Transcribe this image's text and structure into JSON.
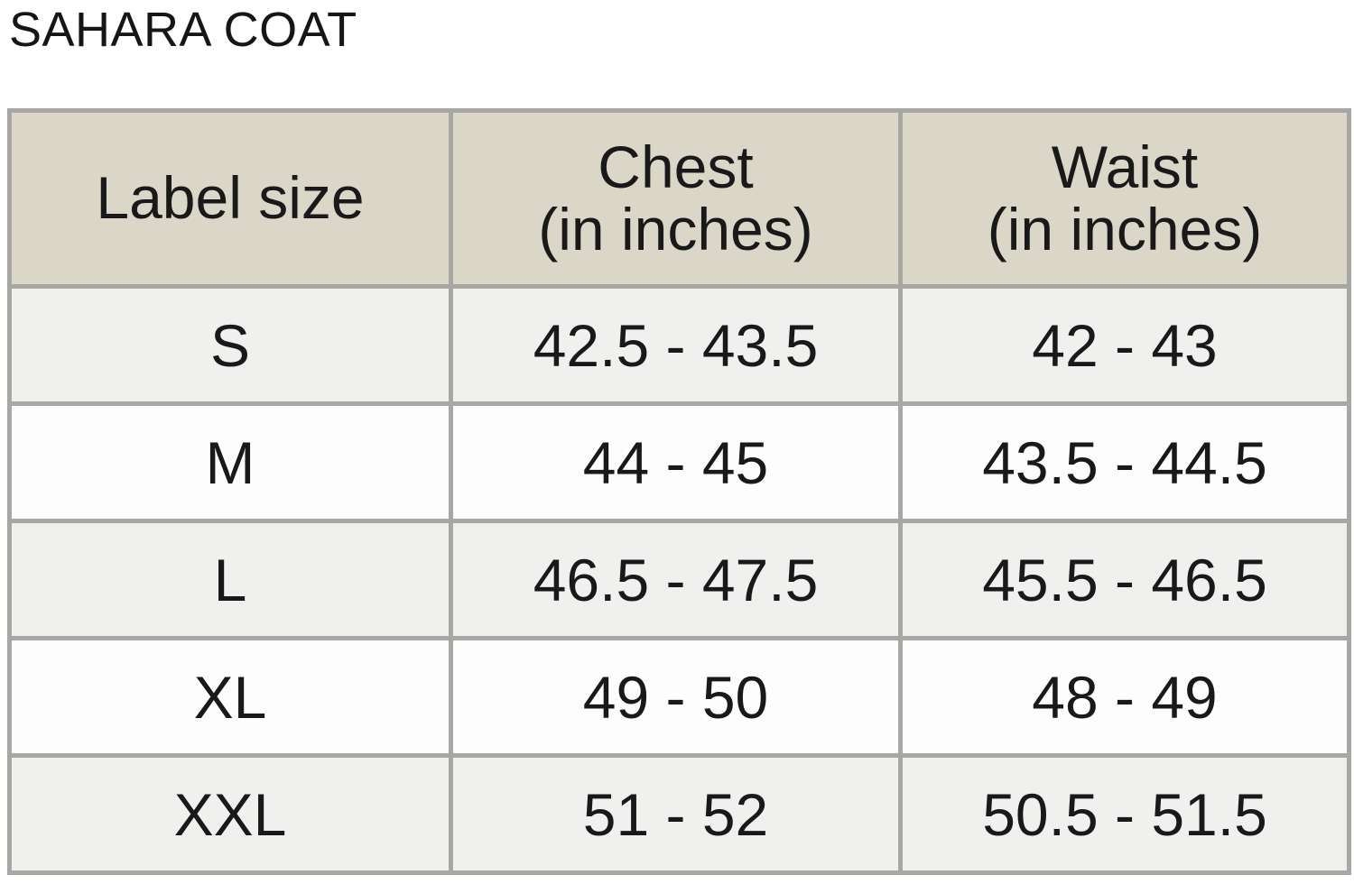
{
  "title": "SAHARA COAT",
  "table": {
    "columns": [
      "Label size",
      "Chest\n(in inches)",
      "Waist\n(in inches)"
    ],
    "rows": [
      {
        "cells": [
          "S",
          "42.5 - 43.5",
          "42 - 43"
        ]
      },
      {
        "cells": [
          "M",
          "44 - 45",
          "43.5 - 44.5"
        ]
      },
      {
        "cells": [
          "L",
          "46.5 - 47.5",
          "45.5 - 46.5"
        ]
      },
      {
        "cells": [
          "XL",
          "49 - 50",
          "48 - 49"
        ]
      },
      {
        "cells": [
          "XXL",
          "51 - 52",
          "50.5 - 51.5"
        ]
      }
    ]
  },
  "colors": {
    "header_background": "#dad6c8",
    "row_alternate_background": "#f0f0ee",
    "row_plain_background": "#fdfdfd",
    "grid_border": "#a8a7a3",
    "text": "#191919"
  }
}
